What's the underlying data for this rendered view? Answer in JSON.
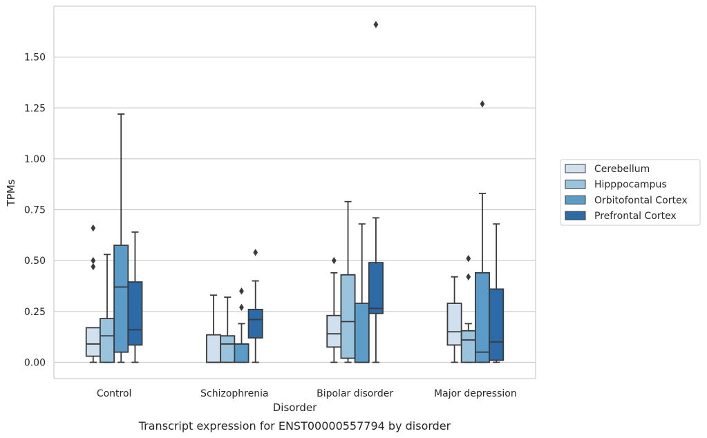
{
  "chart_data": {
    "type": "box",
    "caption": "Transcript expression for ENST00000557794 by disorder",
    "xlabel": "Disorder",
    "ylabel": "TPMs",
    "ylim": [
      -0.08,
      1.75
    ],
    "yticks": [
      0.0,
      0.25,
      0.5,
      0.75,
      1.0,
      1.25,
      1.5
    ],
    "ytick_labels": [
      "0.00",
      "0.25",
      "0.50",
      "0.75",
      "1.00",
      "1.25",
      "1.50"
    ],
    "grid": "horizontal",
    "legend_position": "right",
    "categories": [
      "Control",
      "Schizophrenia",
      "Bipolar disorder",
      "Major depression"
    ],
    "series": [
      {
        "name": "Cerebellum",
        "color": "#d0e0ef",
        "boxes": [
          {
            "whislo": 0.0,
            "q1": 0.03,
            "med": 0.09,
            "q3": 0.17,
            "whishi": 0.17,
            "fliers": [
              0.47,
              0.5,
              0.66
            ]
          },
          {
            "whislo": 0.0,
            "q1": 0.0,
            "med": 0.0,
            "q3": 0.135,
            "whishi": 0.33,
            "fliers": []
          },
          {
            "whislo": 0.0,
            "q1": 0.075,
            "med": 0.14,
            "q3": 0.23,
            "whishi": 0.44,
            "fliers": [
              0.5
            ]
          },
          {
            "whislo": 0.0,
            "q1": 0.085,
            "med": 0.15,
            "q3": 0.29,
            "whishi": 0.42,
            "fliers": []
          }
        ]
      },
      {
        "name": "Hipppocampus",
        "color": "#9ac3dd",
        "boxes": [
          {
            "whislo": 0.0,
            "q1": 0.0,
            "med": 0.13,
            "q3": 0.215,
            "whishi": 0.53,
            "fliers": []
          },
          {
            "whislo": 0.0,
            "q1": 0.0,
            "med": 0.09,
            "q3": 0.13,
            "whishi": 0.32,
            "fliers": []
          },
          {
            "whislo": 0.0,
            "q1": 0.02,
            "med": 0.2,
            "q3": 0.43,
            "whishi": 0.79,
            "fliers": []
          },
          {
            "whislo": 0.0,
            "q1": 0.0,
            "med": 0.11,
            "q3": 0.155,
            "whishi": 0.19,
            "fliers": [
              0.42,
              0.51
            ]
          }
        ]
      },
      {
        "name": "Orbitofontal Cortex",
        "color": "#5a9bc7",
        "boxes": [
          {
            "whislo": 0.0,
            "q1": 0.05,
            "med": 0.37,
            "q3": 0.575,
            "whishi": 1.22,
            "fliers": []
          },
          {
            "whislo": 0.0,
            "q1": 0.0,
            "med": 0.09,
            "q3": 0.09,
            "whishi": 0.19,
            "fliers": [
              0.27,
              0.35
            ]
          },
          {
            "whislo": 0.0,
            "q1": 0.0,
            "med": 0.0,
            "q3": 0.29,
            "whishi": 0.68,
            "fliers": []
          },
          {
            "whislo": 0.0,
            "q1": 0.0,
            "med": 0.05,
            "q3": 0.44,
            "whishi": 0.83,
            "fliers": [
              1.27
            ]
          }
        ]
      },
      {
        "name": "Prefrontal Cortex",
        "color": "#2c6aa8",
        "boxes": [
          {
            "whislo": 0.0,
            "q1": 0.085,
            "med": 0.16,
            "q3": 0.395,
            "whishi": 0.64,
            "fliers": []
          },
          {
            "whislo": 0.0,
            "q1": 0.12,
            "med": 0.21,
            "q3": 0.26,
            "whishi": 0.4,
            "fliers": [
              0.54
            ]
          },
          {
            "whislo": 0.0,
            "q1": 0.24,
            "med": 0.265,
            "q3": 0.49,
            "whishi": 0.71,
            "fliers": [
              1.66
            ]
          },
          {
            "whislo": 0.0,
            "q1": 0.01,
            "med": 0.1,
            "q3": 0.36,
            "whishi": 0.68,
            "fliers": []
          }
        ]
      }
    ]
  }
}
